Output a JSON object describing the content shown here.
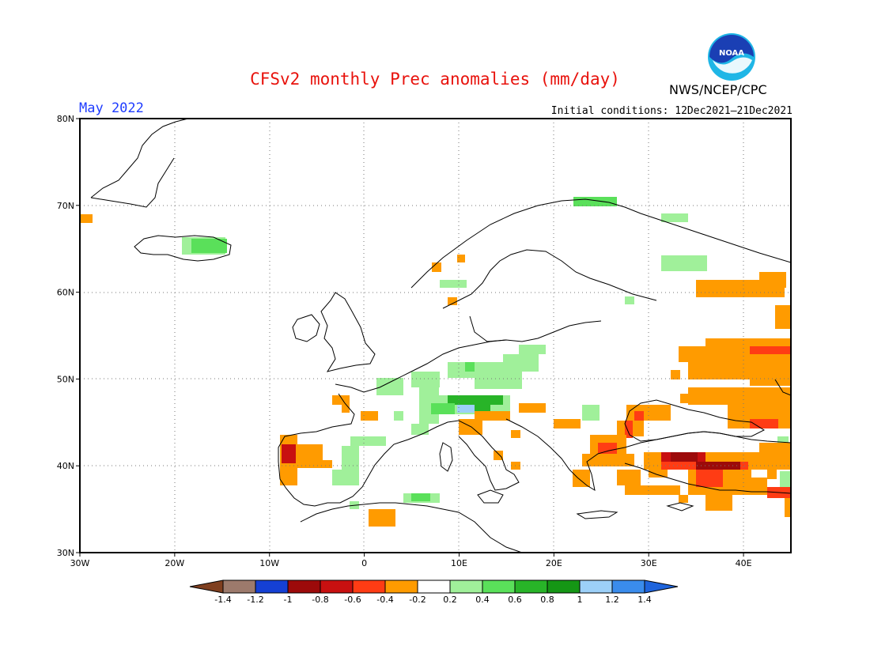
{
  "title": "CFSv2 monthly Prec anomalies (mm/day)",
  "title_color": "#e8120c",
  "month_label": "May 2022",
  "initial_conditions": "Initial conditions: 12Dec2021—21Dec2021",
  "agency": "NWS/NCEP/CPC",
  "logo": {
    "icon": "noaa-logo-icon",
    "text": "NOAA"
  },
  "map": {
    "region": "Europe",
    "lon_range": [
      -30,
      45
    ],
    "lat_range": [
      30,
      80
    ],
    "grid": "dotted",
    "lat_ticks": [
      "30N",
      "40N",
      "50N",
      "60N",
      "70N",
      "80N"
    ],
    "lon_ticks": [
      "30W",
      "20W",
      "10W",
      "0",
      "10E",
      "20E",
      "30E",
      "40E"
    ]
  },
  "legend": {
    "labels": [
      "-1.4",
      "-1.2",
      "-1",
      "-0.8",
      "-0.6",
      "-0.4",
      "-0.2",
      "0.2",
      "0.4",
      "0.6",
      "0.8",
      "1",
      "1.2",
      "1.4"
    ],
    "colors": [
      "#7f3f1f",
      "#9c7a6c",
      "#1540d4",
      "#9c0a0a",
      "#c81010",
      "#ff3c14",
      "#ff9b00",
      "#ffffff",
      "#a0f09a",
      "#5ae05a",
      "#28b428",
      "#159615",
      "#9cd0f8",
      "#3a8cec",
      "#1e64dc"
    ]
  }
}
